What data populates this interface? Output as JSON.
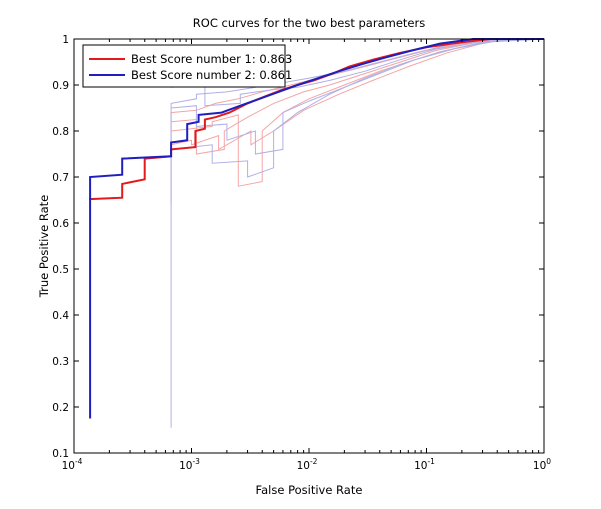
{
  "chart_data": {
    "type": "line",
    "title": "ROC curves for the two best parameters",
    "xlabel": "False Positive Rate",
    "ylabel": "True Positive Rate",
    "xscale": "log",
    "xlim": [
      0.0001,
      1
    ],
    "ylim": [
      0.1,
      1
    ],
    "grid": false,
    "legend_position": "top-left",
    "x_ticks": [
      {
        "base": "10",
        "exp": "-4"
      },
      {
        "base": "10",
        "exp": "-3"
      },
      {
        "base": "10",
        "exp": "-2"
      },
      {
        "base": "10",
        "exp": "-1"
      },
      {
        "base": "10",
        "exp": "0"
      }
    ],
    "y_ticks": [
      "0.1",
      "0.2",
      "0.3",
      "0.4",
      "0.5",
      "0.6",
      "0.7",
      "0.8",
      "0.9",
      "1"
    ],
    "y_tick_values": [
      0.1,
      0.2,
      0.3,
      0.4,
      0.5,
      0.6,
      0.7,
      0.8,
      0.9,
      1.0
    ],
    "series": [
      {
        "name": "Best Score number 1: 0.863",
        "color": "#e31a1c",
        "points": [
          [
            0.000137,
            0.65
          ],
          [
            0.000137,
            0.652
          ],
          [
            0.000257,
            0.655
          ],
          [
            0.000257,
            0.685
          ],
          [
            0.0004,
            0.695
          ],
          [
            0.0004,
            0.74
          ],
          [
            0.00067,
            0.745
          ],
          [
            0.00067,
            0.76
          ],
          [
            0.00108,
            0.765
          ],
          [
            0.00108,
            0.8
          ],
          [
            0.0013,
            0.805
          ],
          [
            0.0013,
            0.825
          ],
          [
            0.0016,
            0.83
          ],
          [
            0.0021,
            0.84
          ],
          [
            0.003,
            0.86
          ],
          [
            0.0042,
            0.875
          ],
          [
            0.006,
            0.89
          ],
          [
            0.008,
            0.9
          ],
          [
            0.011,
            0.91
          ],
          [
            0.016,
            0.925
          ],
          [
            0.022,
            0.94
          ],
          [
            0.035,
            0.955
          ],
          [
            0.06,
            0.97
          ],
          [
            0.1,
            0.982
          ],
          [
            0.2,
            0.993
          ],
          [
            0.35,
            1.0
          ],
          [
            1.0,
            1.0
          ]
        ]
      },
      {
        "name": "Best Score number 2: 0.861",
        "color": "#1f1fbf",
        "points": [
          [
            0.000137,
            0.175
          ],
          [
            0.000137,
            0.7
          ],
          [
            0.000257,
            0.705
          ],
          [
            0.000257,
            0.74
          ],
          [
            0.00067,
            0.745
          ],
          [
            0.00067,
            0.775
          ],
          [
            0.00092,
            0.78
          ],
          [
            0.00092,
            0.815
          ],
          [
            0.00115,
            0.82
          ],
          [
            0.00115,
            0.835
          ],
          [
            0.0018,
            0.84
          ],
          [
            0.0026,
            0.855
          ],
          [
            0.0038,
            0.87
          ],
          [
            0.0055,
            0.885
          ],
          [
            0.008,
            0.9
          ],
          [
            0.012,
            0.915
          ],
          [
            0.018,
            0.93
          ],
          [
            0.028,
            0.945
          ],
          [
            0.045,
            0.96
          ],
          [
            0.075,
            0.975
          ],
          [
            0.13,
            0.99
          ],
          [
            0.25,
            1.0
          ],
          [
            1.0,
            1.0
          ]
        ]
      }
    ],
    "background_series": [
      {
        "color": "#f4a6a6",
        "points": [
          [
            0.00067,
            0.64
          ],
          [
            0.00067,
            0.84
          ],
          [
            0.0011,
            0.845
          ],
          [
            0.0016,
            0.86
          ],
          [
            0.0025,
            0.87
          ],
          [
            0.004,
            0.885
          ],
          [
            0.007,
            0.9
          ],
          [
            0.012,
            0.915
          ],
          [
            0.025,
            0.935
          ],
          [
            0.05,
            0.955
          ],
          [
            0.1,
            0.975
          ],
          [
            0.2,
            0.99
          ],
          [
            0.5,
            1.0
          ],
          [
            1.0,
            1.0
          ]
        ]
      },
      {
        "color": "#f4a6a6",
        "points": [
          [
            0.00067,
            0.82
          ],
          [
            0.0011,
            0.825
          ],
          [
            0.0011,
            0.75
          ],
          [
            0.0019,
            0.76
          ],
          [
            0.0019,
            0.8
          ],
          [
            0.003,
            0.83
          ],
          [
            0.005,
            0.86
          ],
          [
            0.009,
            0.885
          ],
          [
            0.015,
            0.9
          ],
          [
            0.03,
            0.925
          ],
          [
            0.06,
            0.95
          ],
          [
            0.12,
            0.975
          ],
          [
            0.3,
            0.995
          ],
          [
            1.0,
            1.0
          ]
        ]
      },
      {
        "color": "#f4a6a6",
        "points": [
          [
            0.00067,
            0.8
          ],
          [
            0.0015,
            0.81
          ],
          [
            0.0015,
            0.82
          ],
          [
            0.0025,
            0.835
          ],
          [
            0.0025,
            0.68
          ],
          [
            0.004,
            0.69
          ],
          [
            0.004,
            0.8
          ],
          [
            0.006,
            0.84
          ],
          [
            0.01,
            0.87
          ],
          [
            0.02,
            0.9
          ],
          [
            0.04,
            0.93
          ],
          [
            0.08,
            0.955
          ],
          [
            0.18,
            0.98
          ],
          [
            0.4,
            0.998
          ],
          [
            1.0,
            1.0
          ]
        ]
      },
      {
        "color": "#f4a6a6",
        "points": [
          [
            0.00067,
            0.77
          ],
          [
            0.001,
            0.78
          ],
          [
            0.001,
            0.77
          ],
          [
            0.0017,
            0.79
          ],
          [
            0.0017,
            0.76
          ],
          [
            0.0032,
            0.8
          ],
          [
            0.0032,
            0.77
          ],
          [
            0.005,
            0.8
          ],
          [
            0.009,
            0.845
          ],
          [
            0.018,
            0.88
          ],
          [
            0.035,
            0.91
          ],
          [
            0.07,
            0.94
          ],
          [
            0.15,
            0.97
          ],
          [
            0.35,
            0.995
          ],
          [
            1.0,
            1.0
          ]
        ]
      },
      {
        "color": "#b0b0e6",
        "points": [
          [
            0.00067,
            0.155
          ],
          [
            0.00067,
            0.86
          ],
          [
            0.0011,
            0.87
          ],
          [
            0.0011,
            0.88
          ],
          [
            0.002,
            0.885
          ],
          [
            0.0035,
            0.895
          ],
          [
            0.006,
            0.905
          ],
          [
            0.01,
            0.915
          ],
          [
            0.02,
            0.93
          ],
          [
            0.04,
            0.95
          ],
          [
            0.08,
            0.97
          ],
          [
            0.16,
            0.988
          ],
          [
            0.4,
            1.0
          ],
          [
            1.0,
            1.0
          ]
        ]
      },
      {
        "color": "#b0b0e6",
        "points": [
          [
            0.00067,
            0.895
          ],
          [
            0.0013,
            0.9
          ],
          [
            0.0013,
            0.855
          ],
          [
            0.0026,
            0.86
          ],
          [
            0.0026,
            0.88
          ],
          [
            0.005,
            0.89
          ],
          [
            0.008,
            0.895
          ],
          [
            0.015,
            0.91
          ],
          [
            0.03,
            0.93
          ],
          [
            0.06,
            0.955
          ],
          [
            0.12,
            0.978
          ],
          [
            0.3,
            0.995
          ],
          [
            1.0,
            1.0
          ]
        ]
      },
      {
        "color": "#b0b0e6",
        "points": [
          [
            0.00067,
            0.85
          ],
          [
            0.0011,
            0.855
          ],
          [
            0.0011,
            0.81
          ],
          [
            0.002,
            0.815
          ],
          [
            0.002,
            0.78
          ],
          [
            0.0035,
            0.8
          ],
          [
            0.0035,
            0.75
          ],
          [
            0.006,
            0.76
          ],
          [
            0.006,
            0.84
          ],
          [
            0.01,
            0.865
          ],
          [
            0.02,
            0.895
          ],
          [
            0.04,
            0.925
          ],
          [
            0.08,
            0.955
          ],
          [
            0.18,
            0.98
          ],
          [
            0.45,
            0.998
          ],
          [
            1.0,
            1.0
          ]
        ]
      },
      {
        "color": "#b0b0e6",
        "points": [
          [
            0.00067,
            0.76
          ],
          [
            0.0015,
            0.77
          ],
          [
            0.0015,
            0.73
          ],
          [
            0.003,
            0.735
          ],
          [
            0.003,
            0.7
          ],
          [
            0.005,
            0.72
          ],
          [
            0.005,
            0.8
          ],
          [
            0.008,
            0.84
          ],
          [
            0.015,
            0.88
          ],
          [
            0.03,
            0.915
          ],
          [
            0.06,
            0.945
          ],
          [
            0.13,
            0.972
          ],
          [
            0.3,
            0.993
          ],
          [
            1.0,
            1.0
          ]
        ]
      }
    ]
  }
}
